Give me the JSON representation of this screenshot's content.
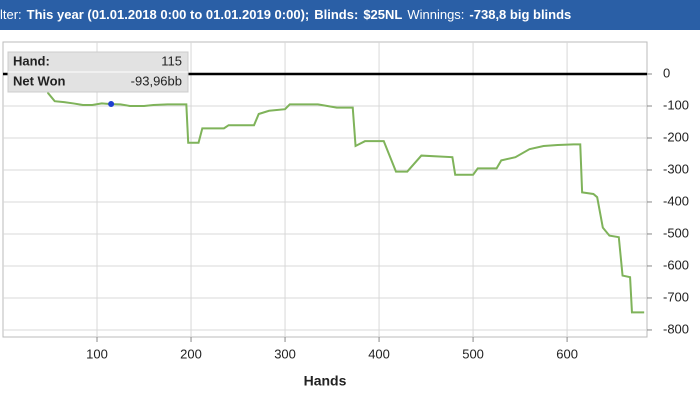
{
  "header": {
    "parts": [
      {
        "text": "lter:",
        "bold": false
      },
      {
        "text": "This year (01.01.2018 0:00 to 01.01.2019 0:00);",
        "bold": true
      },
      {
        "text": "Blinds:",
        "bold": true
      },
      {
        "text": "$25NL",
        "bold": true
      },
      {
        "text": "Winnings:",
        "bold": false
      },
      {
        "text": "-738,8 big blinds",
        "bold": true
      }
    ]
  },
  "chart_data": {
    "type": "line",
    "x_label": "Hands",
    "color": "#7fb35a",
    "grid": true,
    "x": [
      45,
      48,
      55,
      65,
      75,
      85,
      95,
      105,
      115,
      125,
      135,
      150,
      160,
      175,
      195,
      197,
      208,
      212,
      235,
      240,
      267,
      272,
      283,
      300,
      305,
      335,
      355,
      372,
      375,
      385,
      405,
      418,
      430,
      445,
      478,
      481,
      500,
      505,
      525,
      530,
      545,
      560,
      575,
      590,
      607,
      614,
      616,
      628,
      632,
      638,
      645,
      655,
      659,
      667,
      669,
      682
    ],
    "values": [
      0,
      -60,
      -85,
      -88,
      -92,
      -97,
      -97,
      -92,
      -94,
      -95,
      -100,
      -100,
      -97,
      -95,
      -95,
      -215,
      -215,
      -170,
      -170,
      -160,
      -160,
      -125,
      -115,
      -110,
      -95,
      -95,
      -105,
      -105,
      -225,
      -210,
      -210,
      -305,
      -305,
      -255,
      -260,
      -315,
      -315,
      -295,
      -295,
      -270,
      -260,
      -235,
      -225,
      -222,
      -220,
      -220,
      -370,
      -375,
      -385,
      -480,
      -505,
      -510,
      -630,
      -635,
      -745,
      -745
    ],
    "xlim": [
      0,
      685
    ],
    "ylim": [
      -822,
      100
    ],
    "xticks": [
      100,
      200,
      300,
      400,
      500,
      600
    ],
    "yticks": [
      0,
      -100,
      -200,
      -300,
      -400,
      -500,
      -600,
      -700,
      -800
    ],
    "tooltip": {
      "hand_title": "Hand:",
      "hand": 115,
      "net_title": "Net Won",
      "net_won": -93.96,
      "net_won_label": "-93,96bb",
      "marker_color": "#1f3fd0"
    }
  }
}
